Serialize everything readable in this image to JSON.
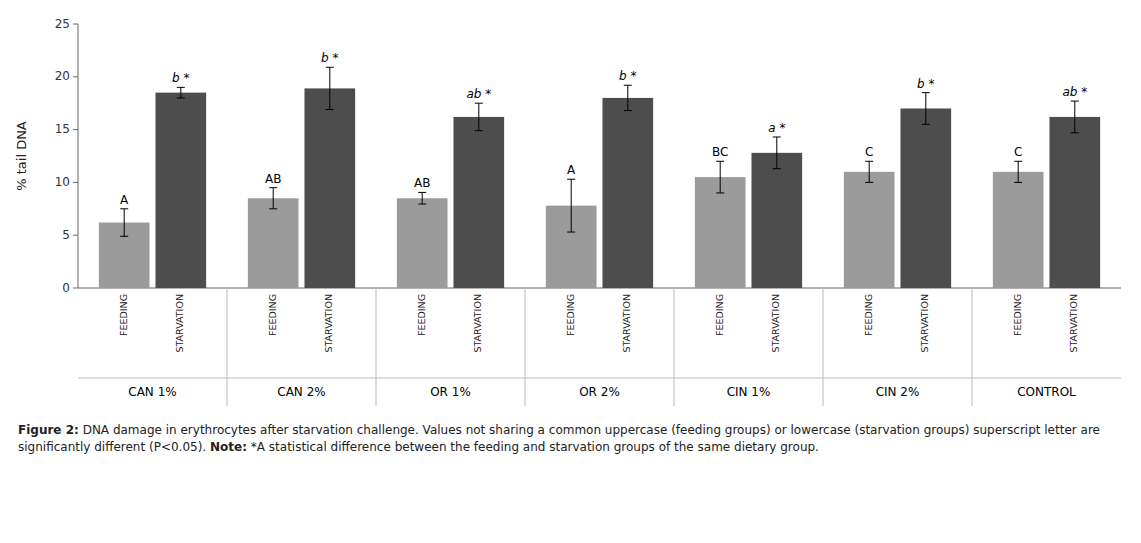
{
  "chart_data": {
    "type": "bar",
    "ylabel": "% tail DNA",
    "categories": [
      "CAN 1%",
      "CAN 2%",
      "OR 1%",
      "OR 2%",
      "CIN 1%",
      "CIN 2%",
      "CONTROL"
    ],
    "series": [
      {
        "name": "FEEDING",
        "color": "#9b9b9b",
        "values": [
          6.2,
          8.5,
          8.5,
          7.8,
          10.5,
          11.0,
          11.0
        ],
        "errors": [
          1.3,
          1.0,
          0.55,
          2.5,
          1.5,
          1.0,
          1.0
        ],
        "labels": [
          "A",
          "AB",
          "AB",
          "A",
          "BC",
          "C",
          "C"
        ]
      },
      {
        "name": "STARVATION",
        "color": "#4d4d4d",
        "values": [
          18.5,
          18.9,
          16.2,
          18.0,
          12.8,
          17.0,
          16.2
        ],
        "errors": [
          0.5,
          2.0,
          1.3,
          1.2,
          1.5,
          1.5,
          1.5
        ],
        "labels": [
          "b *",
          "b *",
          "ab *",
          "b *",
          "a *",
          "b *",
          "ab *"
        ]
      }
    ],
    "ylim": [
      0,
      25
    ],
    "yticks": [
      0,
      5,
      10,
      15,
      20,
      25
    ],
    "grid": false,
    "caption_title": "Figure 2:",
    "caption_text": "DNA damage in erythrocytes after starvation challenge. Values not sharing a common uppercase (feeding groups) or lowercase (starvation groups) superscript letter are significantly different (P<0.05).",
    "note_title": "Note:",
    "note_text": "*A statistical difference between the feeding and starvation groups of the same dietary group."
  }
}
